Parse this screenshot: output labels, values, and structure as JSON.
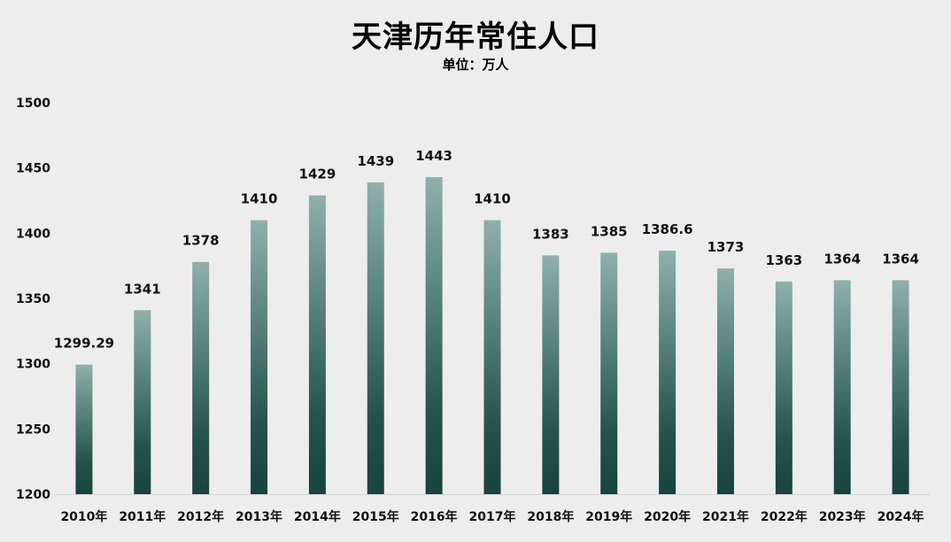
{
  "chart_data": {
    "type": "bar",
    "title": "天津历年常住人口",
    "subtitle": "单位：万人",
    "categories": [
      "2010年",
      "2011年",
      "2012年",
      "2013年",
      "2014年",
      "2015年",
      "2016年",
      "2017年",
      "2018年",
      "2019年",
      "2020年",
      "2021年",
      "2022年",
      "2023年",
      "2024年"
    ],
    "values": [
      1299.29,
      1341,
      1378,
      1410,
      1429,
      1439,
      1443,
      1410,
      1383,
      1385,
      1386.6,
      1373,
      1363,
      1364,
      1364
    ],
    "data_labels": [
      "1299.29",
      "1341",
      "1378",
      "1410",
      "1429",
      "1439",
      "1443",
      "1410",
      "1383",
      "1385",
      "1386.6",
      "1373",
      "1363",
      "1364",
      "1364"
    ],
    "ylim": [
      1200,
      1500
    ],
    "yticks": [
      "1200",
      "1250",
      "1300",
      "1350",
      "1400",
      "1450",
      "1500"
    ],
    "xlabel": "",
    "ylabel": "",
    "grid": false,
    "colors": {
      "bar_top": "#8fb0ab",
      "bar_bottom": "#17433f",
      "background": "#ededed"
    }
  }
}
